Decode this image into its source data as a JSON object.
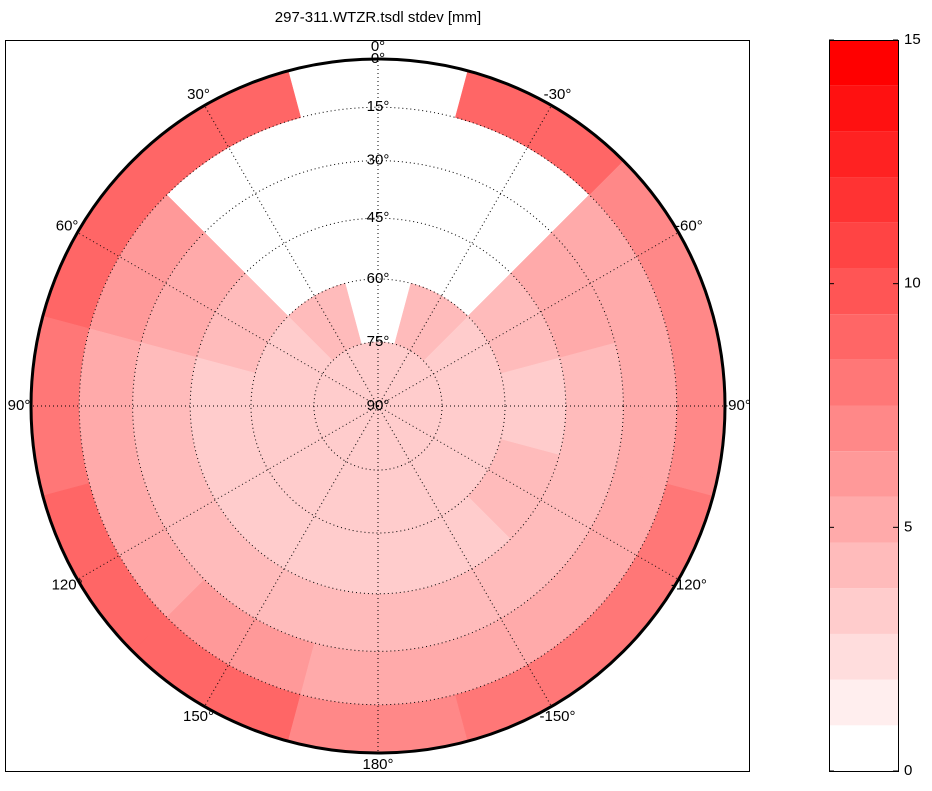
{
  "chart_data": {
    "type": "polar_heatmap",
    "title": "297-311.WTZR.tsdl  stdev [mm]",
    "azimuth_edges": [
      -15,
      15,
      45,
      75,
      105,
      135,
      165,
      195,
      225,
      255,
      285,
      315,
      345
    ],
    "elevation_edges": [
      0,
      15,
      30,
      45,
      60,
      75,
      90
    ],
    "values": [
      [
        null,
        null,
        null,
        null,
        null,
        3
      ],
      [
        9,
        null,
        null,
        null,
        4,
        3
      ],
      [
        9,
        6,
        5,
        4,
        3,
        3
      ],
      [
        8,
        5,
        4,
        3,
        3,
        3
      ],
      [
        9,
        5,
        4,
        3,
        3,
        3
      ],
      [
        9,
        6,
        4,
        3,
        3,
        3
      ],
      [
        7,
        5,
        4,
        3,
        3,
        3
      ],
      [
        8,
        5,
        4,
        3,
        3,
        3
      ],
      [
        8,
        5,
        4,
        4,
        3,
        3
      ],
      [
        7,
        5,
        4,
        3,
        3,
        3
      ],
      [
        7,
        5,
        5,
        4,
        3,
        3
      ],
      [
        9,
        null,
        null,
        null,
        4,
        3
      ]
    ],
    "azimuth_ticks": [
      {
        "value": 0,
        "label": "0°"
      },
      {
        "value": 30,
        "label": "30°"
      },
      {
        "value": 60,
        "label": "60°"
      },
      {
        "value": 90,
        "label": "90°"
      },
      {
        "value": 120,
        "label": "120°"
      },
      {
        "value": 150,
        "label": "150°"
      },
      {
        "value": 180,
        "label": "180°"
      },
      {
        "value": -150,
        "label": "-150°"
      },
      {
        "value": -120,
        "label": "-120°"
      },
      {
        "value": -90,
        "label": "-90°"
      },
      {
        "value": -60,
        "label": "-60°"
      },
      {
        "value": -30,
        "label": "-30°"
      }
    ],
    "elevation_ticks": [
      {
        "value": 0,
        "label": "0°"
      },
      {
        "value": 15,
        "label": "15°"
      },
      {
        "value": 30,
        "label": "30°"
      },
      {
        "value": 45,
        "label": "45°"
      },
      {
        "value": 60,
        "label": "60°"
      },
      {
        "value": 75,
        "label": "75°"
      },
      {
        "value": 90,
        "label": "90°"
      }
    ],
    "clim": [
      0,
      15
    ],
    "cticks": [
      0,
      5,
      10,
      15
    ],
    "colormap": [
      "#ffffff",
      "#ff0000"
    ],
    "levels": 16,
    "grid": true
  }
}
